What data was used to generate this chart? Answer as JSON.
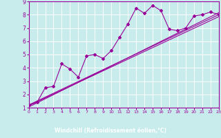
{
  "xlabel": "Windchill (Refroidissement éolien,°C)",
  "bg_color": "#c8ecec",
  "bottom_bar_color": "#800080",
  "line_color": "#990099",
  "grid_color": "#ffffff",
  "xlim": [
    0,
    23
  ],
  "ylim": [
    1,
    9
  ],
  "xticks": [
    0,
    1,
    2,
    3,
    4,
    5,
    6,
    7,
    8,
    9,
    10,
    11,
    12,
    13,
    14,
    15,
    16,
    17,
    18,
    19,
    20,
    21,
    22,
    23
  ],
  "yticks": [
    1,
    2,
    3,
    4,
    5,
    6,
    7,
    8,
    9
  ],
  "data_x": [
    0,
    1,
    2,
    3,
    4,
    5,
    6,
    7,
    8,
    9,
    10,
    11,
    12,
    13,
    14,
    15,
    16,
    17,
    18,
    19,
    20,
    21,
    22,
    23
  ],
  "data_y": [
    1.2,
    1.4,
    2.5,
    2.6,
    4.3,
    3.9,
    3.3,
    4.9,
    5.0,
    4.7,
    5.3,
    6.3,
    7.3,
    8.5,
    8.1,
    8.7,
    8.3,
    6.9,
    6.8,
    7.0,
    7.9,
    8.0,
    8.2,
    8.0
  ],
  "trend1_x": [
    0,
    23
  ],
  "trend1_y": [
    1.2,
    8.0
  ],
  "trend2_x": [
    0,
    23
  ],
  "trend2_y": [
    1.05,
    8.15
  ],
  "trend3_x": [
    0,
    23
  ],
  "trend3_y": [
    1.15,
    7.85
  ]
}
